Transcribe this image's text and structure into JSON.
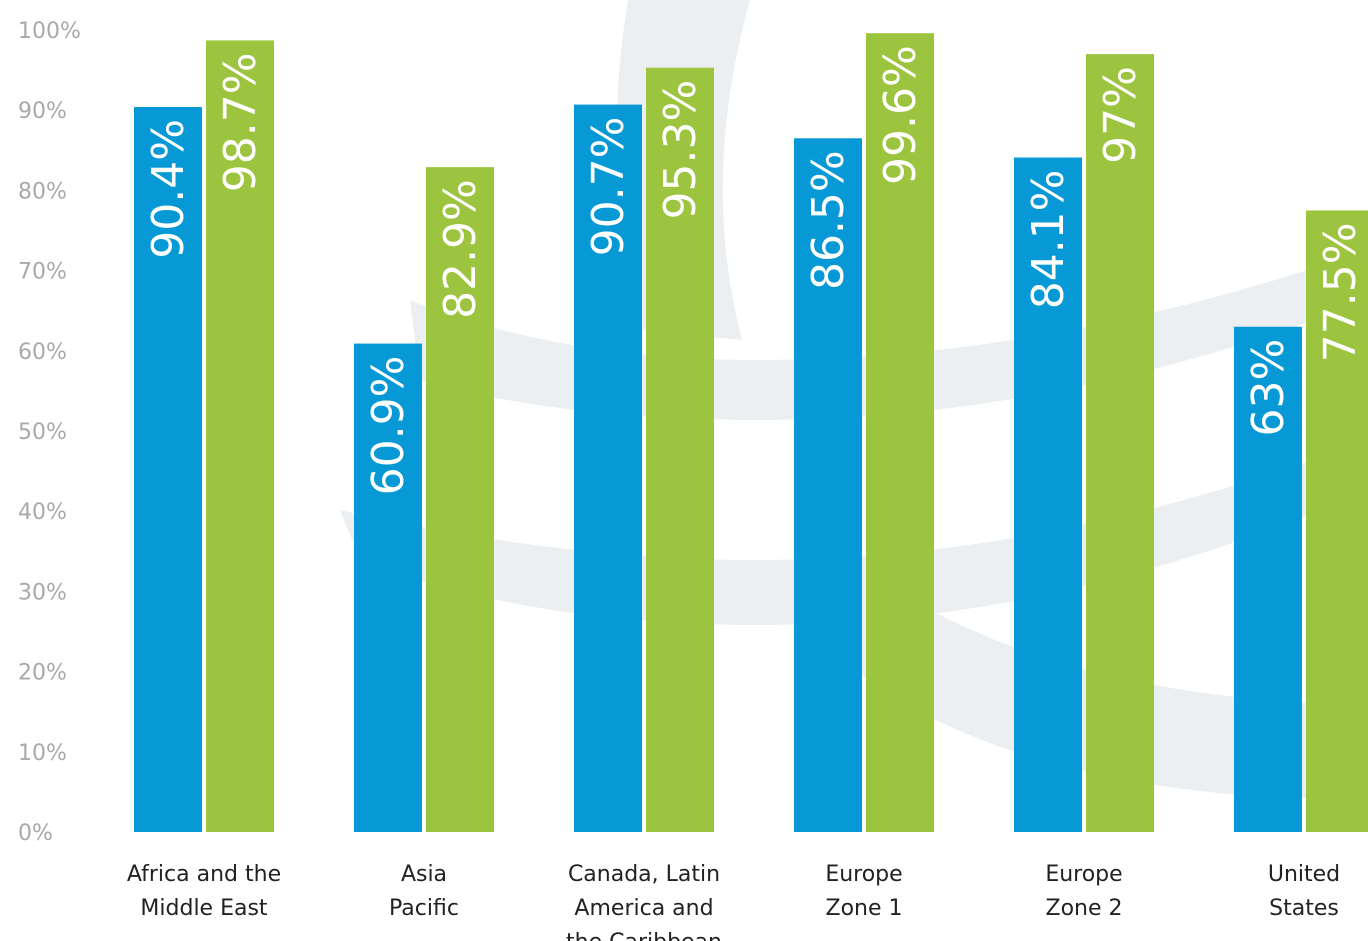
{
  "chart_data": {
    "type": "bar",
    "categories": [
      [
        "Africa and the",
        "Middle East"
      ],
      [
        "Asia",
        "Pacific"
      ],
      [
        "Canada, Latin",
        "America and",
        "the Caribbean"
      ],
      [
        "Europe",
        "Zone 1"
      ],
      [
        "Europe",
        "Zone 2"
      ],
      [
        "United",
        "States"
      ]
    ],
    "series": [
      {
        "values": [
          90.4,
          60.9,
          90.7,
          86.5,
          84.1,
          63
        ],
        "labels": [
          "90.4%",
          "60.9%",
          "90.7%",
          "86.5%",
          "84.1%",
          "63%"
        ],
        "color": "#0799d6"
      },
      {
        "values": [
          98.7,
          82.9,
          95.3,
          99.6,
          97,
          77.5
        ],
        "labels": [
          "98.7%",
          "82.9%",
          "95.3%",
          "99.6%",
          "97%",
          "77.5%"
        ],
        "color": "#9dc43f"
      }
    ],
    "yticks": [
      "0%",
      "10%",
      "20%",
      "30%",
      "40%",
      "50%",
      "60%",
      "70%",
      "80%",
      "90%",
      "100%"
    ],
    "ylim": [
      0,
      100
    ],
    "title": "",
    "xlabel": "",
    "ylabel": "",
    "grid": false,
    "legend": "none",
    "background_watermark_color": "#eceff1"
  }
}
